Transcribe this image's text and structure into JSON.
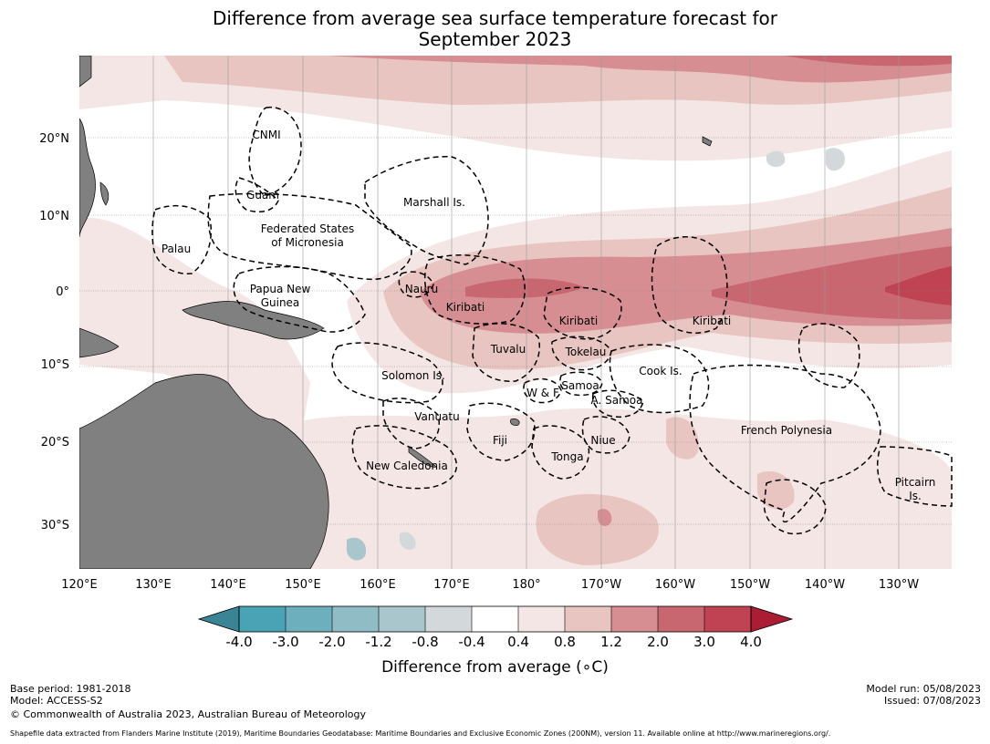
{
  "title_line1": "Difference from average sea surface temperature forecast for",
  "title_line2": "September 2023",
  "axes": {
    "lon_labels": [
      "120°E",
      "130°E",
      "140°E",
      "150°E",
      "160°E",
      "170°E",
      "180°",
      "170°W",
      "160°W",
      "150°W",
      "140°W",
      "130°W"
    ],
    "lat_labels": [
      "20°N",
      "10°N",
      "0°",
      "10°S",
      "20°S",
      "30°S"
    ]
  },
  "regions": [
    {
      "name": "CNMI",
      "text": "CNMI"
    },
    {
      "name": "guam",
      "text": "Guam"
    },
    {
      "name": "marshall",
      "text": "Marshall Is."
    },
    {
      "name": "fsm1",
      "text": "Federated States"
    },
    {
      "name": "fsm2",
      "text": "of Micronesia"
    },
    {
      "name": "palau",
      "text": "Palau"
    },
    {
      "name": "png1",
      "text": "Papua New"
    },
    {
      "name": "png2",
      "text": "Guinea"
    },
    {
      "name": "nauru",
      "text": "Nauru"
    },
    {
      "name": "kiribati1",
      "text": "Kiribati"
    },
    {
      "name": "kiribati2",
      "text": "Kiribati"
    },
    {
      "name": "kiribati3",
      "text": "Kiribati"
    },
    {
      "name": "tuvalu",
      "text": "Tuvalu"
    },
    {
      "name": "tokelau",
      "text": "Tokelau"
    },
    {
      "name": "cook",
      "text": "Cook Is."
    },
    {
      "name": "solomon",
      "text": "Solomon Is."
    },
    {
      "name": "samoa",
      "text": "Samoa"
    },
    {
      "name": "wf",
      "text": "W & F"
    },
    {
      "name": "asamoa",
      "text": "A. Samoa"
    },
    {
      "name": "vanuatu",
      "text": "Vanuatu"
    },
    {
      "name": "fiji",
      "text": "Fiji"
    },
    {
      "name": "niue",
      "text": "Niue"
    },
    {
      "name": "tonga",
      "text": "Tonga"
    },
    {
      "name": "frpoly",
      "text": "French Polynesia"
    },
    {
      "name": "newcal",
      "text": "New Caledonia"
    },
    {
      "name": "pitcairn1",
      "text": "Pitcairn"
    },
    {
      "name": "pitcairn2",
      "text": "Is."
    }
  ],
  "colorbar": {
    "labels": [
      "-4.0",
      "-3.0",
      "-2.0",
      "-1.2",
      "-0.8",
      "-0.4",
      "0.4",
      "0.8",
      "1.2",
      "2.0",
      "3.0",
      "4.0"
    ],
    "colors": [
      "#3b8496",
      "#4aa3b5",
      "#6eafbe",
      "#8fbcc5",
      "#a8c6cb",
      "#d3d9da",
      "#ffffff",
      "#f4e6e4",
      "#e8c5c1",
      "#d68e93",
      "#c86770",
      "#bf4352",
      "#ab1c35"
    ],
    "title": "Difference from average (∘C)"
  },
  "footer": {
    "base_period": "Base period: 1981-2018",
    "model": "Model: ACCESS-S2",
    "copyright": "© Commonwealth of Australia 2023, Australian Bureau of Meteorology",
    "model_run": "Model run: 05/08/2023",
    "issued": "Issued: 07/08/2023",
    "shapefile": "Shapefile data extracted from Flanders Marine Institute (2019), Maritime Boundaries Geodatabase: Maritime Boundaries and Exclusive Economic Zones (200NM), version 11. Available online at http://www.marineregions.org/."
  }
}
